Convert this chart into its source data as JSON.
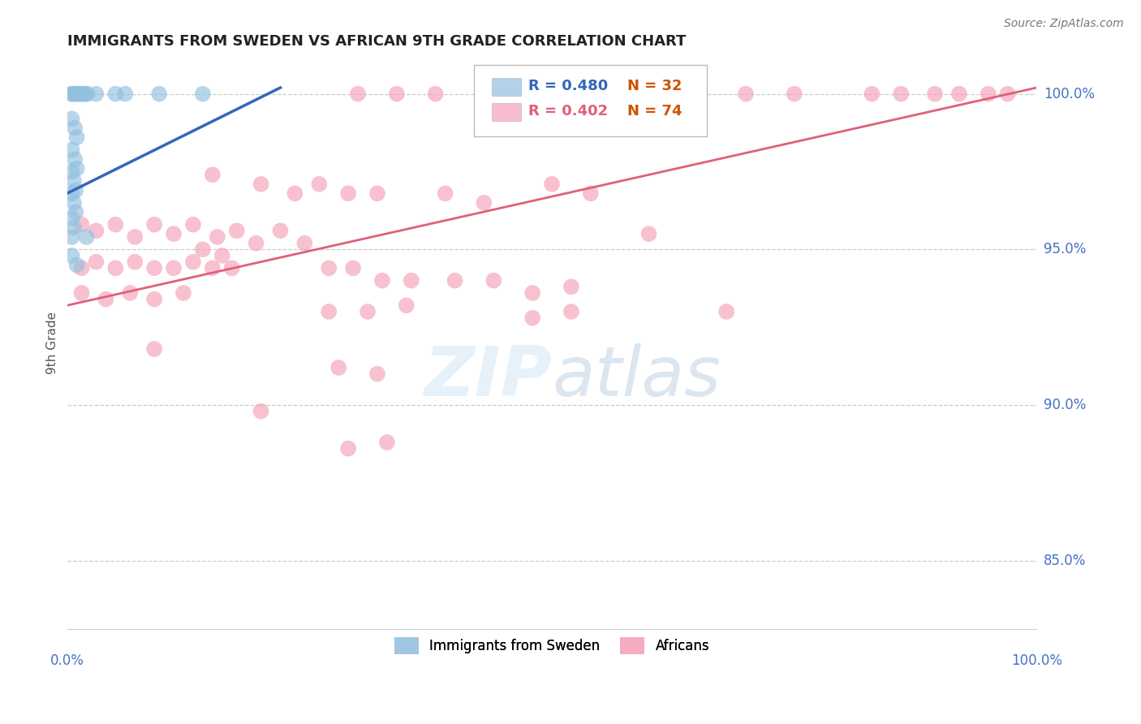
{
  "title": "IMMIGRANTS FROM SWEDEN VS AFRICAN 9TH GRADE CORRELATION CHART",
  "source": "Source: ZipAtlas.com",
  "ylabel": "9th Grade",
  "y_tick_labels": [
    "85.0%",
    "90.0%",
    "95.0%",
    "100.0%"
  ],
  "y_tick_values": [
    0.85,
    0.9,
    0.95,
    1.0
  ],
  "blue_color": "#92c0e0",
  "pink_color": "#f4a0b8",
  "blue_line_color": "#3366bb",
  "pink_line_color": "#e0607a",
  "blue_scatter": [
    [
      0.005,
      1.0
    ],
    [
      0.007,
      1.0
    ],
    [
      0.009,
      1.0
    ],
    [
      0.011,
      1.0
    ],
    [
      0.013,
      1.0
    ],
    [
      0.015,
      1.0
    ],
    [
      0.017,
      1.0
    ],
    [
      0.019,
      1.0
    ],
    [
      0.021,
      1.0
    ],
    [
      0.03,
      1.0
    ],
    [
      0.05,
      1.0
    ],
    [
      0.06,
      1.0
    ],
    [
      0.095,
      1.0
    ],
    [
      0.14,
      1.0
    ],
    [
      0.005,
      0.992
    ],
    [
      0.008,
      0.989
    ],
    [
      0.01,
      0.986
    ],
    [
      0.005,
      0.982
    ],
    [
      0.008,
      0.979
    ],
    [
      0.01,
      0.976
    ],
    [
      0.005,
      0.975
    ],
    [
      0.007,
      0.972
    ],
    [
      0.009,
      0.969
    ],
    [
      0.005,
      0.968
    ],
    [
      0.007,
      0.965
    ],
    [
      0.009,
      0.962
    ],
    [
      0.005,
      0.96
    ],
    [
      0.007,
      0.957
    ],
    [
      0.005,
      0.954
    ],
    [
      0.02,
      0.954
    ],
    [
      0.005,
      0.948
    ],
    [
      0.01,
      0.945
    ]
  ],
  "pink_scatter": [
    [
      0.005,
      1.0
    ],
    [
      0.3,
      1.0
    ],
    [
      0.34,
      1.0
    ],
    [
      0.38,
      1.0
    ],
    [
      0.55,
      1.0
    ],
    [
      0.62,
      1.0
    ],
    [
      0.7,
      1.0
    ],
    [
      0.75,
      1.0
    ],
    [
      0.83,
      1.0
    ],
    [
      0.86,
      1.0
    ],
    [
      0.895,
      1.0
    ],
    [
      0.92,
      1.0
    ],
    [
      0.95,
      1.0
    ],
    [
      0.97,
      1.0
    ],
    [
      0.15,
      0.974
    ],
    [
      0.2,
      0.971
    ],
    [
      0.235,
      0.968
    ],
    [
      0.26,
      0.971
    ],
    [
      0.29,
      0.968
    ],
    [
      0.32,
      0.968
    ],
    [
      0.39,
      0.968
    ],
    [
      0.43,
      0.965
    ],
    [
      0.5,
      0.971
    ],
    [
      0.54,
      0.968
    ],
    [
      0.6,
      0.955
    ],
    [
      0.015,
      0.958
    ],
    [
      0.03,
      0.956
    ],
    [
      0.05,
      0.958
    ],
    [
      0.07,
      0.954
    ],
    [
      0.09,
      0.958
    ],
    [
      0.11,
      0.955
    ],
    [
      0.13,
      0.958
    ],
    [
      0.155,
      0.954
    ],
    [
      0.175,
      0.956
    ],
    [
      0.195,
      0.952
    ],
    [
      0.22,
      0.956
    ],
    [
      0.245,
      0.952
    ],
    [
      0.14,
      0.95
    ],
    [
      0.16,
      0.948
    ],
    [
      0.015,
      0.944
    ],
    [
      0.03,
      0.946
    ],
    [
      0.05,
      0.944
    ],
    [
      0.07,
      0.946
    ],
    [
      0.09,
      0.944
    ],
    [
      0.11,
      0.944
    ],
    [
      0.13,
      0.946
    ],
    [
      0.15,
      0.944
    ],
    [
      0.17,
      0.944
    ],
    [
      0.27,
      0.944
    ],
    [
      0.295,
      0.944
    ],
    [
      0.325,
      0.94
    ],
    [
      0.355,
      0.94
    ],
    [
      0.4,
      0.94
    ],
    [
      0.44,
      0.94
    ],
    [
      0.48,
      0.936
    ],
    [
      0.52,
      0.938
    ],
    [
      0.015,
      0.936
    ],
    [
      0.04,
      0.934
    ],
    [
      0.065,
      0.936
    ],
    [
      0.09,
      0.934
    ],
    [
      0.12,
      0.936
    ],
    [
      0.27,
      0.93
    ],
    [
      0.31,
      0.93
    ],
    [
      0.35,
      0.932
    ],
    [
      0.48,
      0.928
    ],
    [
      0.52,
      0.93
    ],
    [
      0.68,
      0.93
    ],
    [
      0.09,
      0.918
    ],
    [
      0.28,
      0.912
    ],
    [
      0.32,
      0.91
    ],
    [
      0.2,
      0.898
    ],
    [
      0.29,
      0.886
    ],
    [
      0.33,
      0.888
    ]
  ],
  "blue_line_x": [
    0.0,
    0.22
  ],
  "blue_line_y": [
    0.968,
    1.002
  ],
  "pink_line_x": [
    0.0,
    1.0
  ],
  "pink_line_y": [
    0.932,
    1.002
  ],
  "xlim": [
    0.0,
    1.0
  ],
  "ylim": [
    0.828,
    1.012
  ]
}
